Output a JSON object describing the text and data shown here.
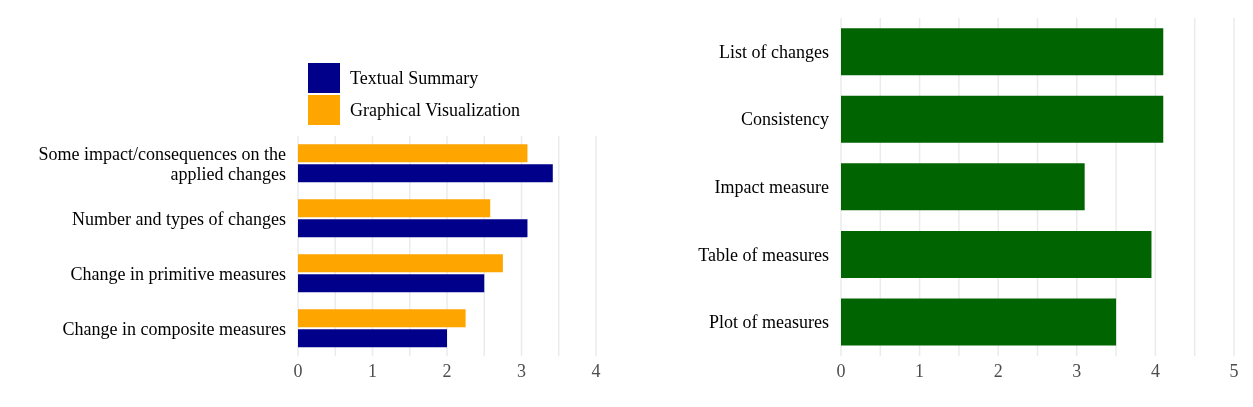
{
  "chart_data": [
    {
      "type": "bar",
      "orientation": "horizontal",
      "categories": [
        "Some impact/consequences on the applied changes",
        "Number and types of changes",
        "Change in primitive measures",
        "Change in composite measures"
      ],
      "series": [
        {
          "name": "Textual Summary",
          "color": "#00008b",
          "values": [
            3.42,
            3.08,
            2.5,
            2.0
          ]
        },
        {
          "name": "Graphical Visualization",
          "color": "#ffa500",
          "values": [
            3.08,
            2.58,
            2.75,
            2.25
          ]
        }
      ],
      "xlim": [
        0,
        4
      ],
      "xticks": [
        0,
        {
          "value": 0.5,
          "label": null
        },
        1,
        {
          "value": 1.5,
          "label": null
        },
        2,
        {
          "value": 2.5,
          "label": null
        },
        3,
        {
          "value": 3.5,
          "label": null
        },
        4
      ],
      "grid": "x",
      "legend": "top"
    },
    {
      "type": "bar",
      "orientation": "horizontal",
      "categories": [
        "List of changes",
        "Consistency",
        "Impact measure",
        "Table of measures",
        "Plot of measures"
      ],
      "series": [
        {
          "color": "#006400",
          "values": [
            4.1,
            4.1,
            3.1,
            3.95,
            3.5
          ]
        }
      ],
      "xlim": [
        0,
        5
      ],
      "xticks": [
        0,
        {
          "value": 0.5,
          "label": null
        },
        1,
        {
          "value": 1.5,
          "label": null
        },
        2,
        {
          "value": 2.5,
          "label": null
        },
        3,
        {
          "value": 3.5,
          "label": null
        },
        4,
        {
          "value": 4.5,
          "label": null
        },
        5
      ],
      "grid": "x"
    }
  ]
}
